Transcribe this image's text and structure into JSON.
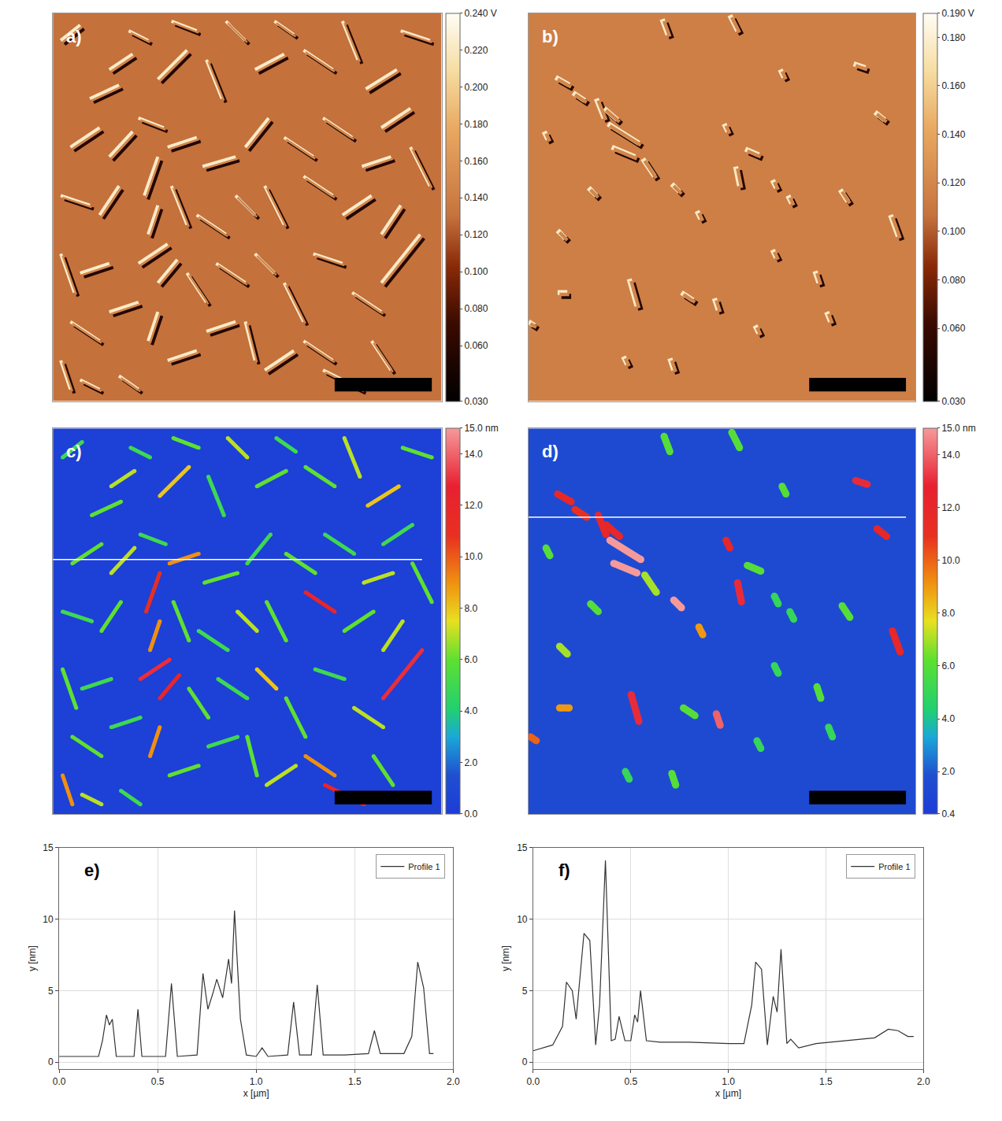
{
  "chart_data": [
    {
      "type": "afm_scan",
      "xlim": [
        0,
        2
      ],
      "ylim": [
        0,
        2
      ],
      "tick_labels": false,
      "scale_bar": 0.5,
      "profile_y": 1.32,
      "particles": [
        [
          0.05,
          1.85,
          0.15,
          1.93,
          5
        ],
        [
          0.2,
          1.55,
          0.35,
          1.62,
          6
        ],
        [
          0.3,
          1.7,
          0.42,
          1.78,
          7
        ],
        [
          0.4,
          1.9,
          0.5,
          1.85,
          5
        ],
        [
          0.55,
          1.65,
          0.7,
          1.8,
          8
        ],
        [
          0.62,
          1.95,
          0.75,
          1.9,
          6
        ],
        [
          0.8,
          1.75,
          0.88,
          1.55,
          5
        ],
        [
          0.9,
          1.95,
          1.0,
          1.85,
          7
        ],
        [
          1.05,
          1.7,
          1.2,
          1.78,
          6
        ],
        [
          1.15,
          1.95,
          1.25,
          1.88,
          5
        ],
        [
          1.3,
          1.8,
          1.45,
          1.7,
          6
        ],
        [
          1.5,
          1.95,
          1.58,
          1.75,
          7
        ],
        [
          1.62,
          1.6,
          1.78,
          1.7,
          8
        ],
        [
          1.8,
          1.9,
          1.95,
          1.85,
          6
        ],
        [
          1.7,
          1.4,
          1.85,
          1.5,
          5
        ],
        [
          0.1,
          1.3,
          0.25,
          1.4,
          6
        ],
        [
          0.3,
          1.25,
          0.42,
          1.38,
          7
        ],
        [
          0.45,
          1.45,
          0.58,
          1.4,
          5
        ],
        [
          0.6,
          1.3,
          0.75,
          1.35,
          9
        ],
        [
          0.78,
          1.2,
          0.95,
          1.25,
          6
        ],
        [
          1.0,
          1.3,
          1.12,
          1.45,
          5
        ],
        [
          1.2,
          1.35,
          1.35,
          1.25,
          6
        ],
        [
          1.4,
          1.45,
          1.55,
          1.35,
          5
        ],
        [
          1.6,
          1.2,
          1.75,
          1.25,
          7
        ],
        [
          1.85,
          1.3,
          1.95,
          1.1,
          6
        ],
        [
          0.05,
          1.05,
          0.2,
          1.0,
          5
        ],
        [
          0.25,
          0.95,
          0.35,
          1.1,
          6
        ],
        [
          0.48,
          1.05,
          0.55,
          1.25,
          11
        ],
        [
          0.5,
          0.85,
          0.55,
          1.0,
          9
        ],
        [
          0.62,
          1.1,
          0.7,
          0.9,
          6
        ],
        [
          0.75,
          0.95,
          0.9,
          0.85,
          5
        ],
        [
          0.95,
          1.05,
          1.05,
          0.95,
          7
        ],
        [
          1.1,
          1.1,
          1.2,
          0.9,
          6
        ],
        [
          1.3,
          1.15,
          1.45,
          1.05,
          12
        ],
        [
          1.5,
          0.95,
          1.65,
          1.05,
          6
        ],
        [
          1.7,
          0.85,
          1.8,
          1.0,
          7
        ],
        [
          1.7,
          0.6,
          1.9,
          0.85,
          13
        ],
        [
          0.05,
          0.75,
          0.12,
          0.55,
          6
        ],
        [
          0.15,
          0.65,
          0.3,
          0.7,
          5
        ],
        [
          0.45,
          0.7,
          0.6,
          0.8,
          13
        ],
        [
          0.55,
          0.6,
          0.65,
          0.72,
          12
        ],
        [
          0.7,
          0.65,
          0.8,
          0.5,
          6
        ],
        [
          0.85,
          0.7,
          1.0,
          0.6,
          5
        ],
        [
          1.05,
          0.75,
          1.15,
          0.65,
          8
        ],
        [
          1.2,
          0.6,
          1.3,
          0.4,
          6
        ],
        [
          1.35,
          0.75,
          1.5,
          0.7,
          5
        ],
        [
          1.55,
          0.55,
          1.7,
          0.45,
          7
        ],
        [
          0.1,
          0.4,
          0.25,
          0.3,
          6
        ],
        [
          0.3,
          0.45,
          0.45,
          0.5,
          5
        ],
        [
          0.5,
          0.3,
          0.55,
          0.45,
          9
        ],
        [
          0.6,
          0.2,
          0.75,
          0.25,
          6
        ],
        [
          0.8,
          0.35,
          0.95,
          0.4,
          5
        ],
        [
          1.0,
          0.4,
          1.05,
          0.2,
          6
        ],
        [
          1.1,
          0.15,
          1.25,
          0.25,
          7
        ],
        [
          1.3,
          0.3,
          1.45,
          0.2,
          9
        ],
        [
          1.4,
          0.15,
          1.6,
          0.05,
          12
        ],
        [
          1.65,
          0.3,
          1.75,
          0.15,
          6
        ],
        [
          0.15,
          0.1,
          0.25,
          0.05,
          7
        ],
        [
          0.35,
          0.12,
          0.45,
          0.05,
          5
        ],
        [
          0.05,
          0.2,
          0.1,
          0.05,
          9
        ]
      ],
      "images": [
        {
          "label": "a)",
          "type": "amplitude",
          "background": 0.13,
          "colorbar": {
            "range": [
              0.03,
              0.24
            ],
            "ticks": [
              {
                "value": 0.03,
                "label": "0.030"
              },
              {
                "value": 0.06,
                "label": "0.060"
              },
              {
                "value": 0.08,
                "label": "0.080"
              },
              {
                "value": 0.1,
                "label": "0.100"
              },
              {
                "value": 0.12,
                "label": "0.120"
              },
              {
                "value": 0.14,
                "label": "0.140"
              },
              {
                "value": 0.16,
                "label": "0.160"
              },
              {
                "value": 0.18,
                "label": "0.180"
              },
              {
                "value": 0.2,
                "label": "0.200"
              },
              {
                "value": 0.22,
                "label": "0.220"
              },
              {
                "value": 0.24,
                "label": "0.240 V"
              }
            ]
          }
        },
        {
          "label": "c)",
          "type": "height",
          "background": 0.3,
          "colorbar": {
            "range": [
              0,
              15
            ],
            "ticks": [
              {
                "value": 0,
                "label": "0.0"
              },
              {
                "value": 2,
                "label": "2.0"
              },
              {
                "value": 4,
                "label": "4.0"
              },
              {
                "value": 6,
                "label": "6.0"
              },
              {
                "value": 8,
                "label": "8.0"
              },
              {
                "value": 10,
                "label": "10.0"
              },
              {
                "value": 12,
                "label": "12.0"
              },
              {
                "value": 14,
                "label": "14.0"
              },
              {
                "value": 15,
                "label": "15.0 nm"
              }
            ]
          }
        }
      ],
      "profile": {
        "label": "e)",
        "type": "line",
        "xlabel": "x [µm]",
        "ylabel": "y [nm]",
        "xlim": [
          0,
          2
        ],
        "ylim": [
          -0.5,
          15
        ],
        "xticks": [
          {
            "value": 0,
            "label": "0.0"
          },
          {
            "value": 0.5,
            "label": "0.5"
          },
          {
            "value": 1,
            "label": "1.0"
          },
          {
            "value": 1.5,
            "label": "1.5"
          },
          {
            "value": 2,
            "label": "2.0"
          }
        ],
        "yticks": [
          0,
          5,
          10,
          15
        ],
        "grid": true,
        "legend": "top right",
        "series": [
          {
            "name": "Profile 1",
            "color": "#333333",
            "x": [
              0,
              0.1,
              0.2,
              0.22,
              0.24,
              0.255,
              0.27,
              0.29,
              0.38,
              0.4,
              0.42,
              0.54,
              0.57,
              0.6,
              0.7,
              0.73,
              0.755,
              0.78,
              0.8,
              0.83,
              0.86,
              0.875,
              0.89,
              0.92,
              0.95,
              1.0,
              1.03,
              1.06,
              1.16,
              1.19,
              1.22,
              1.28,
              1.31,
              1.34,
              1.45,
              1.57,
              1.6,
              1.63,
              1.75,
              1.79,
              1.82,
              1.85,
              1.88,
              1.9
            ],
            "values": [
              0.4,
              0.4,
              0.4,
              1.5,
              3.3,
              2.6,
              3.0,
              0.4,
              0.4,
              3.7,
              0.4,
              0.4,
              5.5,
              0.4,
              0.5,
              6.2,
              3.7,
              4.8,
              5.8,
              4.5,
              7.2,
              5.5,
              10.6,
              3.0,
              0.5,
              0.4,
              1.0,
              0.4,
              0.5,
              4.2,
              0.5,
              0.5,
              5.4,
              0.5,
              0.5,
              0.6,
              2.2,
              0.6,
              0.6,
              1.8,
              7.0,
              5.2,
              0.6,
              0.6
            ]
          }
        ]
      }
    },
    {
      "type": "afm_scan",
      "xlim": [
        0,
        2
      ],
      "ylim": [
        0,
        2
      ],
      "tick_labels": false,
      "scale_bar": 0.5,
      "profile_y": 1.54,
      "particles": [
        [
          0.42,
          1.42,
          0.58,
          1.32,
          15
        ],
        [
          0.44,
          1.3,
          0.56,
          1.25,
          15
        ],
        [
          0.4,
          1.5,
          0.47,
          1.44,
          12
        ],
        [
          0.15,
          1.66,
          0.22,
          1.62,
          12
        ],
        [
          0.24,
          1.58,
          0.3,
          1.54,
          11
        ],
        [
          0.36,
          1.55,
          0.4,
          1.45,
          12
        ],
        [
          0.75,
          1.11,
          0.79,
          1.07,
          15
        ],
        [
          1.02,
          1.42,
          1.04,
          1.38,
          12
        ],
        [
          1.08,
          1.2,
          1.1,
          1.1,
          13
        ],
        [
          0.88,
          0.97,
          0.9,
          0.93,
          9
        ],
        [
          1.69,
          1.73,
          1.75,
          1.71,
          13
        ],
        [
          1.8,
          1.48,
          1.85,
          1.44,
          12
        ],
        [
          1.88,
          0.95,
          1.92,
          0.84,
          12
        ],
        [
          0.53,
          0.62,
          0.57,
          0.48,
          13
        ],
        [
          0.97,
          0.52,
          0.99,
          0.46,
          14
        ],
        [
          0.16,
          0.55,
          0.21,
          0.55,
          9
        ],
        [
          0.8,
          0.55,
          0.86,
          0.51,
          6
        ],
        [
          0.01,
          0.4,
          0.04,
          0.38,
          10
        ],
        [
          1.13,
          1.29,
          1.2,
          1.26,
          6
        ],
        [
          1.49,
          0.66,
          1.51,
          0.6,
          6
        ],
        [
          1.62,
          1.08,
          1.66,
          1.02,
          6
        ],
        [
          1.27,
          1.13,
          1.29,
          1.09,
          5
        ],
        [
          0.16,
          0.87,
          0.2,
          0.83,
          7
        ],
        [
          0.09,
          1.38,
          0.11,
          1.34,
          6
        ],
        [
          0.32,
          1.09,
          0.36,
          1.05,
          6
        ],
        [
          0.6,
          1.24,
          0.66,
          1.15,
          7
        ],
        [
          1.05,
          1.98,
          1.09,
          1.9,
          6
        ],
        [
          0.7,
          1.96,
          0.73,
          1.88,
          6
        ],
        [
          1.35,
          1.05,
          1.37,
          1.01,
          5
        ],
        [
          1.55,
          0.45,
          1.57,
          0.4,
          5
        ],
        [
          1.18,
          0.38,
          1.2,
          0.34,
          5
        ],
        [
          0.74,
          0.21,
          0.76,
          0.15,
          6
        ],
        [
          0.5,
          0.22,
          0.52,
          0.18,
          5
        ],
        [
          1.31,
          1.7,
          1.33,
          1.66,
          6
        ],
        [
          1.27,
          0.77,
          1.29,
          0.73,
          5
        ]
      ],
      "images": [
        {
          "label": "b)",
          "type": "amplitude",
          "background": 0.115,
          "colorbar": {
            "range": [
              0.03,
              0.19
            ],
            "ticks": [
              {
                "value": 0.03,
                "label": "0.030"
              },
              {
                "value": 0.06,
                "label": "0.060"
              },
              {
                "value": 0.08,
                "label": "0.080"
              },
              {
                "value": 0.1,
                "label": "0.100"
              },
              {
                "value": 0.12,
                "label": "0.120"
              },
              {
                "value": 0.14,
                "label": "0.140"
              },
              {
                "value": 0.16,
                "label": "0.160"
              },
              {
                "value": 0.18,
                "label": "0.180"
              },
              {
                "value": 0.19,
                "label": "0.190 V"
              }
            ]
          }
        },
        {
          "label": "d)",
          "type": "height",
          "background": 1.5,
          "colorbar": {
            "range": [
              0.4,
              15
            ],
            "ticks": [
              {
                "value": 0.4,
                "label": "0.4"
              },
              {
                "value": 2,
                "label": "2.0"
              },
              {
                "value": 4,
                "label": "4.0"
              },
              {
                "value": 6,
                "label": "6.0"
              },
              {
                "value": 8,
                "label": "8.0"
              },
              {
                "value": 10,
                "label": "10.0"
              },
              {
                "value": 12,
                "label": "12.0"
              },
              {
                "value": 14,
                "label": "14.0"
              },
              {
                "value": 15,
                "label": "15.0 nm"
              }
            ]
          }
        }
      ],
      "profile": {
        "label": "f)",
        "type": "line",
        "xlabel": "x [µm]",
        "ylabel": "y [nm]",
        "xlim": [
          0,
          2
        ],
        "ylim": [
          -0.5,
          15
        ],
        "xticks": [
          {
            "value": 0,
            "label": "0.0"
          },
          {
            "value": 0.5,
            "label": "0.5"
          },
          {
            "value": 1,
            "label": "1.0"
          },
          {
            "value": 1.5,
            "label": "1.5"
          },
          {
            "value": 2,
            "label": "2.0"
          }
        ],
        "yticks": [
          0,
          5,
          10,
          15
        ],
        "grid": true,
        "legend": "top right",
        "series": [
          {
            "name": "Profile 1",
            "color": "#333333",
            "x": [
              0,
              0.05,
              0.1,
              0.15,
              0.17,
              0.2,
              0.22,
              0.26,
              0.29,
              0.32,
              0.34,
              0.37,
              0.4,
              0.42,
              0.44,
              0.47,
              0.5,
              0.52,
              0.535,
              0.55,
              0.58,
              0.65,
              0.8,
              1.0,
              1.08,
              1.12,
              1.14,
              1.17,
              1.2,
              1.23,
              1.25,
              1.27,
              1.3,
              1.32,
              1.36,
              1.45,
              1.6,
              1.75,
              1.82,
              1.87,
              1.92,
              1.95
            ],
            "values": [
              0.8,
              1.0,
              1.2,
              2.5,
              5.6,
              5.0,
              3.0,
              9.0,
              8.5,
              1.2,
              4.0,
              14.1,
              1.5,
              1.6,
              3.2,
              1.5,
              1.5,
              3.3,
              2.8,
              5.0,
              1.5,
              1.4,
              1.4,
              1.3,
              1.3,
              4.0,
              7.0,
              6.5,
              1.2,
              4.6,
              3.5,
              7.9,
              1.3,
              1.6,
              1.0,
              1.3,
              1.5,
              1.7,
              2.3,
              2.2,
              1.8,
              1.8
            ]
          }
        ]
      }
    }
  ]
}
